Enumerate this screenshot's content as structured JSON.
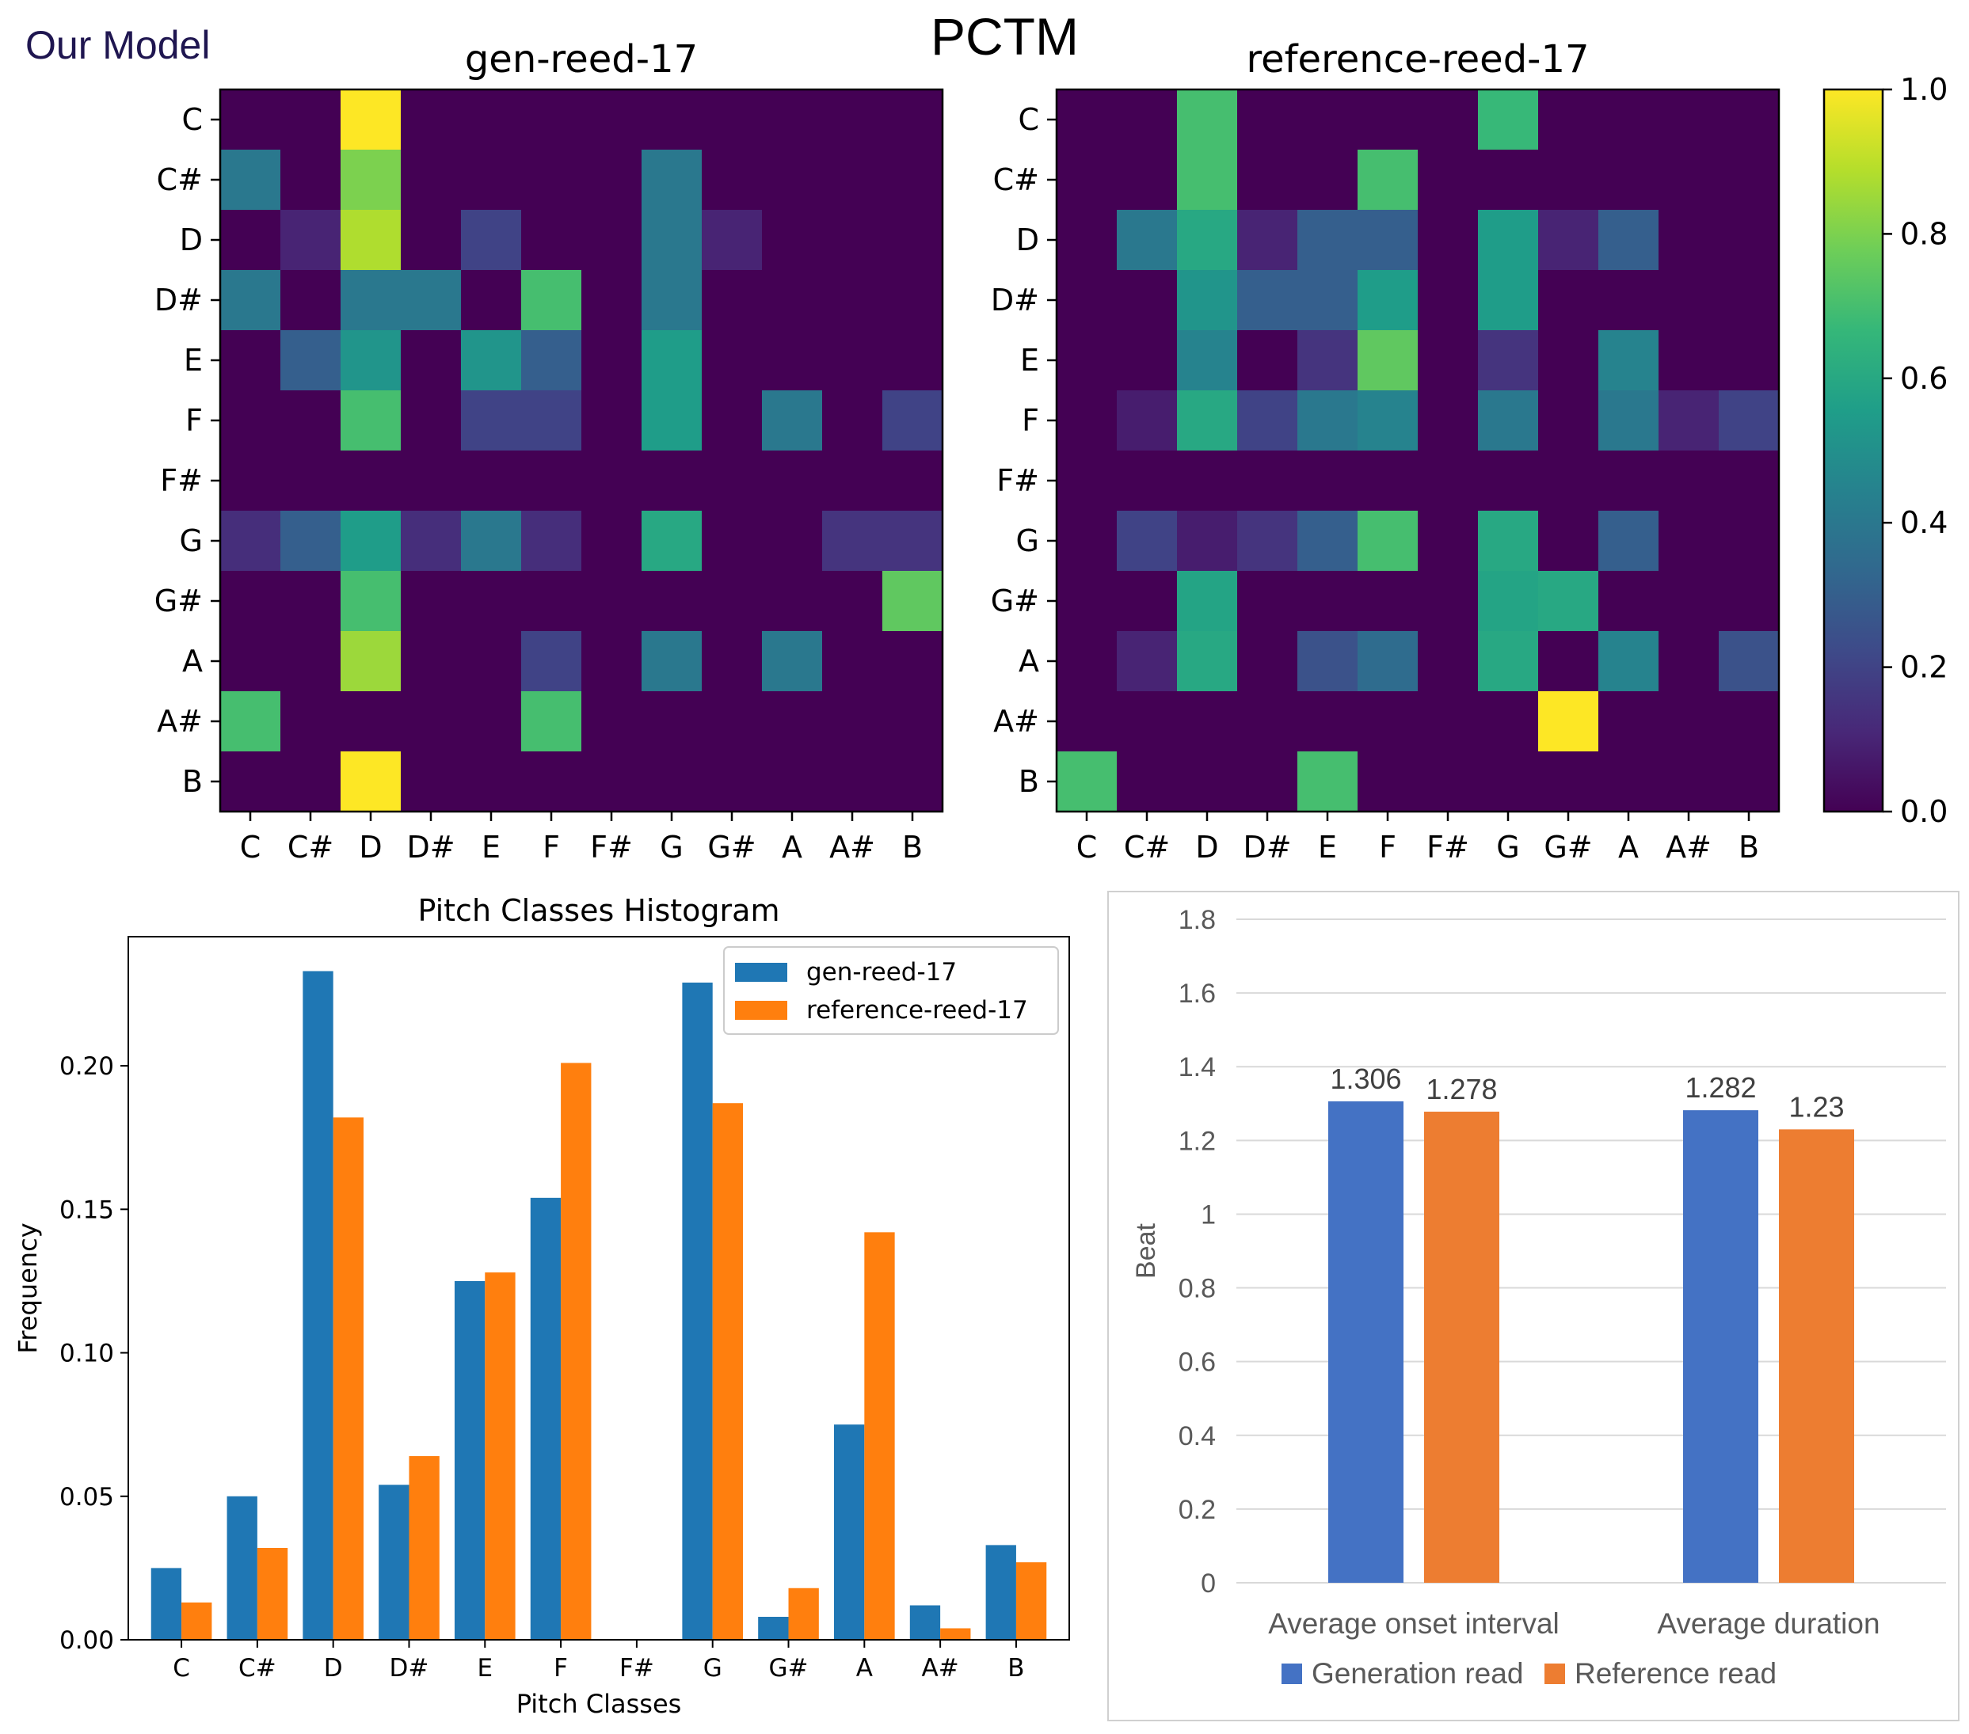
{
  "header": {
    "brand": "Our Model",
    "title": "PCTM"
  },
  "colors": {
    "viridis_low": "#440154",
    "viridis_high": "#fde725",
    "hist_gen": "#1f77b4",
    "hist_ref": "#ff7f0e",
    "beat_gen": "#4472c4",
    "beat_ref": "#ed7d31"
  },
  "chart_data": [
    {
      "type": "heatmap",
      "title": "gen-reed-17",
      "x_labels": [
        "C",
        "C#",
        "D",
        "D#",
        "E",
        "F",
        "F#",
        "G",
        "G#",
        "A",
        "A#",
        "B"
      ],
      "y_labels": [
        "C",
        "C#",
        "D",
        "D#",
        "E",
        "F",
        "F#",
        "G",
        "G#",
        "A",
        "A#",
        "B"
      ],
      "colorbar": {
        "min": 0.0,
        "max": 1.0,
        "ticks": [
          "0.0",
          "0.2",
          "0.4",
          "0.6",
          "0.8",
          "1.0"
        ]
      },
      "matrix": [
        [
          0,
          0,
          1.0,
          0,
          0,
          0,
          0,
          0,
          0,
          0,
          0,
          0
        ],
        [
          0.4,
          0,
          0.8,
          0,
          0,
          0,
          0,
          0.4,
          0,
          0,
          0,
          0
        ],
        [
          0,
          0.1,
          0.88,
          0,
          0.2,
          0,
          0,
          0.4,
          0.1,
          0,
          0,
          0
        ],
        [
          0.4,
          0,
          0.4,
          0.4,
          0,
          0.7,
          0,
          0.4,
          0,
          0,
          0,
          0
        ],
        [
          0,
          0.3,
          0.52,
          0,
          0.52,
          0.3,
          0,
          0.55,
          0,
          0,
          0,
          0
        ],
        [
          0,
          0,
          0.7,
          0,
          0.2,
          0.2,
          0,
          0.55,
          0,
          0.4,
          0,
          0.2
        ],
        [
          0,
          0,
          0,
          0,
          0,
          0,
          0,
          0,
          0,
          0,
          0,
          0
        ],
        [
          0.13,
          0.3,
          0.55,
          0.13,
          0.4,
          0.13,
          0,
          0.6,
          0,
          0,
          0.15,
          0.15
        ],
        [
          0,
          0,
          0.7,
          0,
          0,
          0,
          0,
          0,
          0,
          0,
          0,
          0.75
        ],
        [
          0,
          0,
          0.85,
          0,
          0,
          0.2,
          0,
          0.4,
          0,
          0.4,
          0,
          0
        ],
        [
          0.7,
          0,
          0,
          0,
          0,
          0.7,
          0,
          0,
          0,
          0,
          0,
          0
        ],
        [
          0,
          0,
          1.0,
          0,
          0,
          0,
          0,
          0,
          0,
          0,
          0,
          0
        ]
      ]
    },
    {
      "type": "heatmap",
      "title": "reference-reed-17",
      "x_labels": [
        "C",
        "C#",
        "D",
        "D#",
        "E",
        "F",
        "F#",
        "G",
        "G#",
        "A",
        "A#",
        "B"
      ],
      "y_labels": [
        "C",
        "C#",
        "D",
        "D#",
        "E",
        "F",
        "F#",
        "G",
        "G#",
        "A",
        "A#",
        "B"
      ],
      "colorbar": {
        "min": 0.0,
        "max": 1.0,
        "ticks": [
          "0.0",
          "0.2",
          "0.4",
          "0.6",
          "0.8",
          "1.0"
        ]
      },
      "matrix": [
        [
          0,
          0,
          0.7,
          0,
          0,
          0,
          0,
          0.67,
          0,
          0,
          0,
          0
        ],
        [
          0,
          0,
          0.7,
          0,
          0,
          0.7,
          0,
          0,
          0,
          0,
          0,
          0
        ],
        [
          0,
          0.4,
          0.6,
          0.1,
          0.3,
          0.3,
          0,
          0.55,
          0.1,
          0.3,
          0,
          0
        ],
        [
          0,
          0,
          0.52,
          0.3,
          0.3,
          0.55,
          0,
          0.55,
          0,
          0,
          0,
          0
        ],
        [
          0,
          0,
          0.45,
          0,
          0.15,
          0.75,
          0,
          0.15,
          0,
          0.45,
          0,
          0
        ],
        [
          0,
          0.08,
          0.6,
          0.2,
          0.4,
          0.45,
          0,
          0.4,
          0,
          0.4,
          0.1,
          0.2
        ],
        [
          0,
          0,
          0,
          0,
          0,
          0,
          0,
          0,
          0,
          0,
          0,
          0
        ],
        [
          0,
          0.2,
          0.08,
          0.15,
          0.3,
          0.7,
          0,
          0.6,
          0,
          0.3,
          0,
          0
        ],
        [
          0,
          0,
          0.58,
          0,
          0,
          0,
          0,
          0.58,
          0.6,
          0,
          0,
          0
        ],
        [
          0,
          0.1,
          0.6,
          0,
          0.25,
          0.35,
          0,
          0.6,
          0,
          0.45,
          0,
          0.25
        ],
        [
          0,
          0,
          0,
          0,
          0,
          0,
          0,
          0,
          1.0,
          0,
          0,
          0
        ],
        [
          0.7,
          0,
          0,
          0,
          0.7,
          0,
          0,
          0,
          0,
          0,
          0,
          0
        ]
      ]
    },
    {
      "type": "bar",
      "title": "Pitch Classes Histogram",
      "xlabel": "Pitch Classes",
      "ylabel": "Frequency",
      "ylim": [
        0,
        0.245
      ],
      "yticks": [
        "0.00",
        "0.05",
        "0.10",
        "0.15",
        "0.20"
      ],
      "legend": "top-right",
      "categories": [
        "C",
        "C#",
        "D",
        "D#",
        "E",
        "F",
        "F#",
        "G",
        "G#",
        "A",
        "A#",
        "B"
      ],
      "series": [
        {
          "name": "gen-reed-17",
          "values": [
            0.025,
            0.05,
            0.233,
            0.054,
            0.125,
            0.154,
            0.0,
            0.229,
            0.008,
            0.075,
            0.012,
            0.033
          ]
        },
        {
          "name": "reference-reed-17",
          "values": [
            0.013,
            0.032,
            0.182,
            0.064,
            0.128,
            0.201,
            0.0,
            0.187,
            0.018,
            0.142,
            0.004,
            0.027
          ]
        }
      ]
    },
    {
      "type": "bar",
      "title": "",
      "ylabel": "Beat",
      "ylim": [
        0,
        1.8
      ],
      "yticks": [
        "0",
        "0.2",
        "0.4",
        "0.6",
        "0.8",
        "1",
        "1.2",
        "1.4",
        "1.6",
        "1.8"
      ],
      "legend": "bottom",
      "categories": [
        "Average onset interval",
        "Average duration"
      ],
      "series": [
        {
          "name": "Generation read",
          "values": [
            1.306,
            1.282
          ],
          "labels": [
            "1.306",
            "1.282"
          ]
        },
        {
          "name": "Reference read",
          "values": [
            1.278,
            1.23
          ],
          "labels": [
            "1.278",
            "1.23"
          ]
        }
      ]
    }
  ]
}
